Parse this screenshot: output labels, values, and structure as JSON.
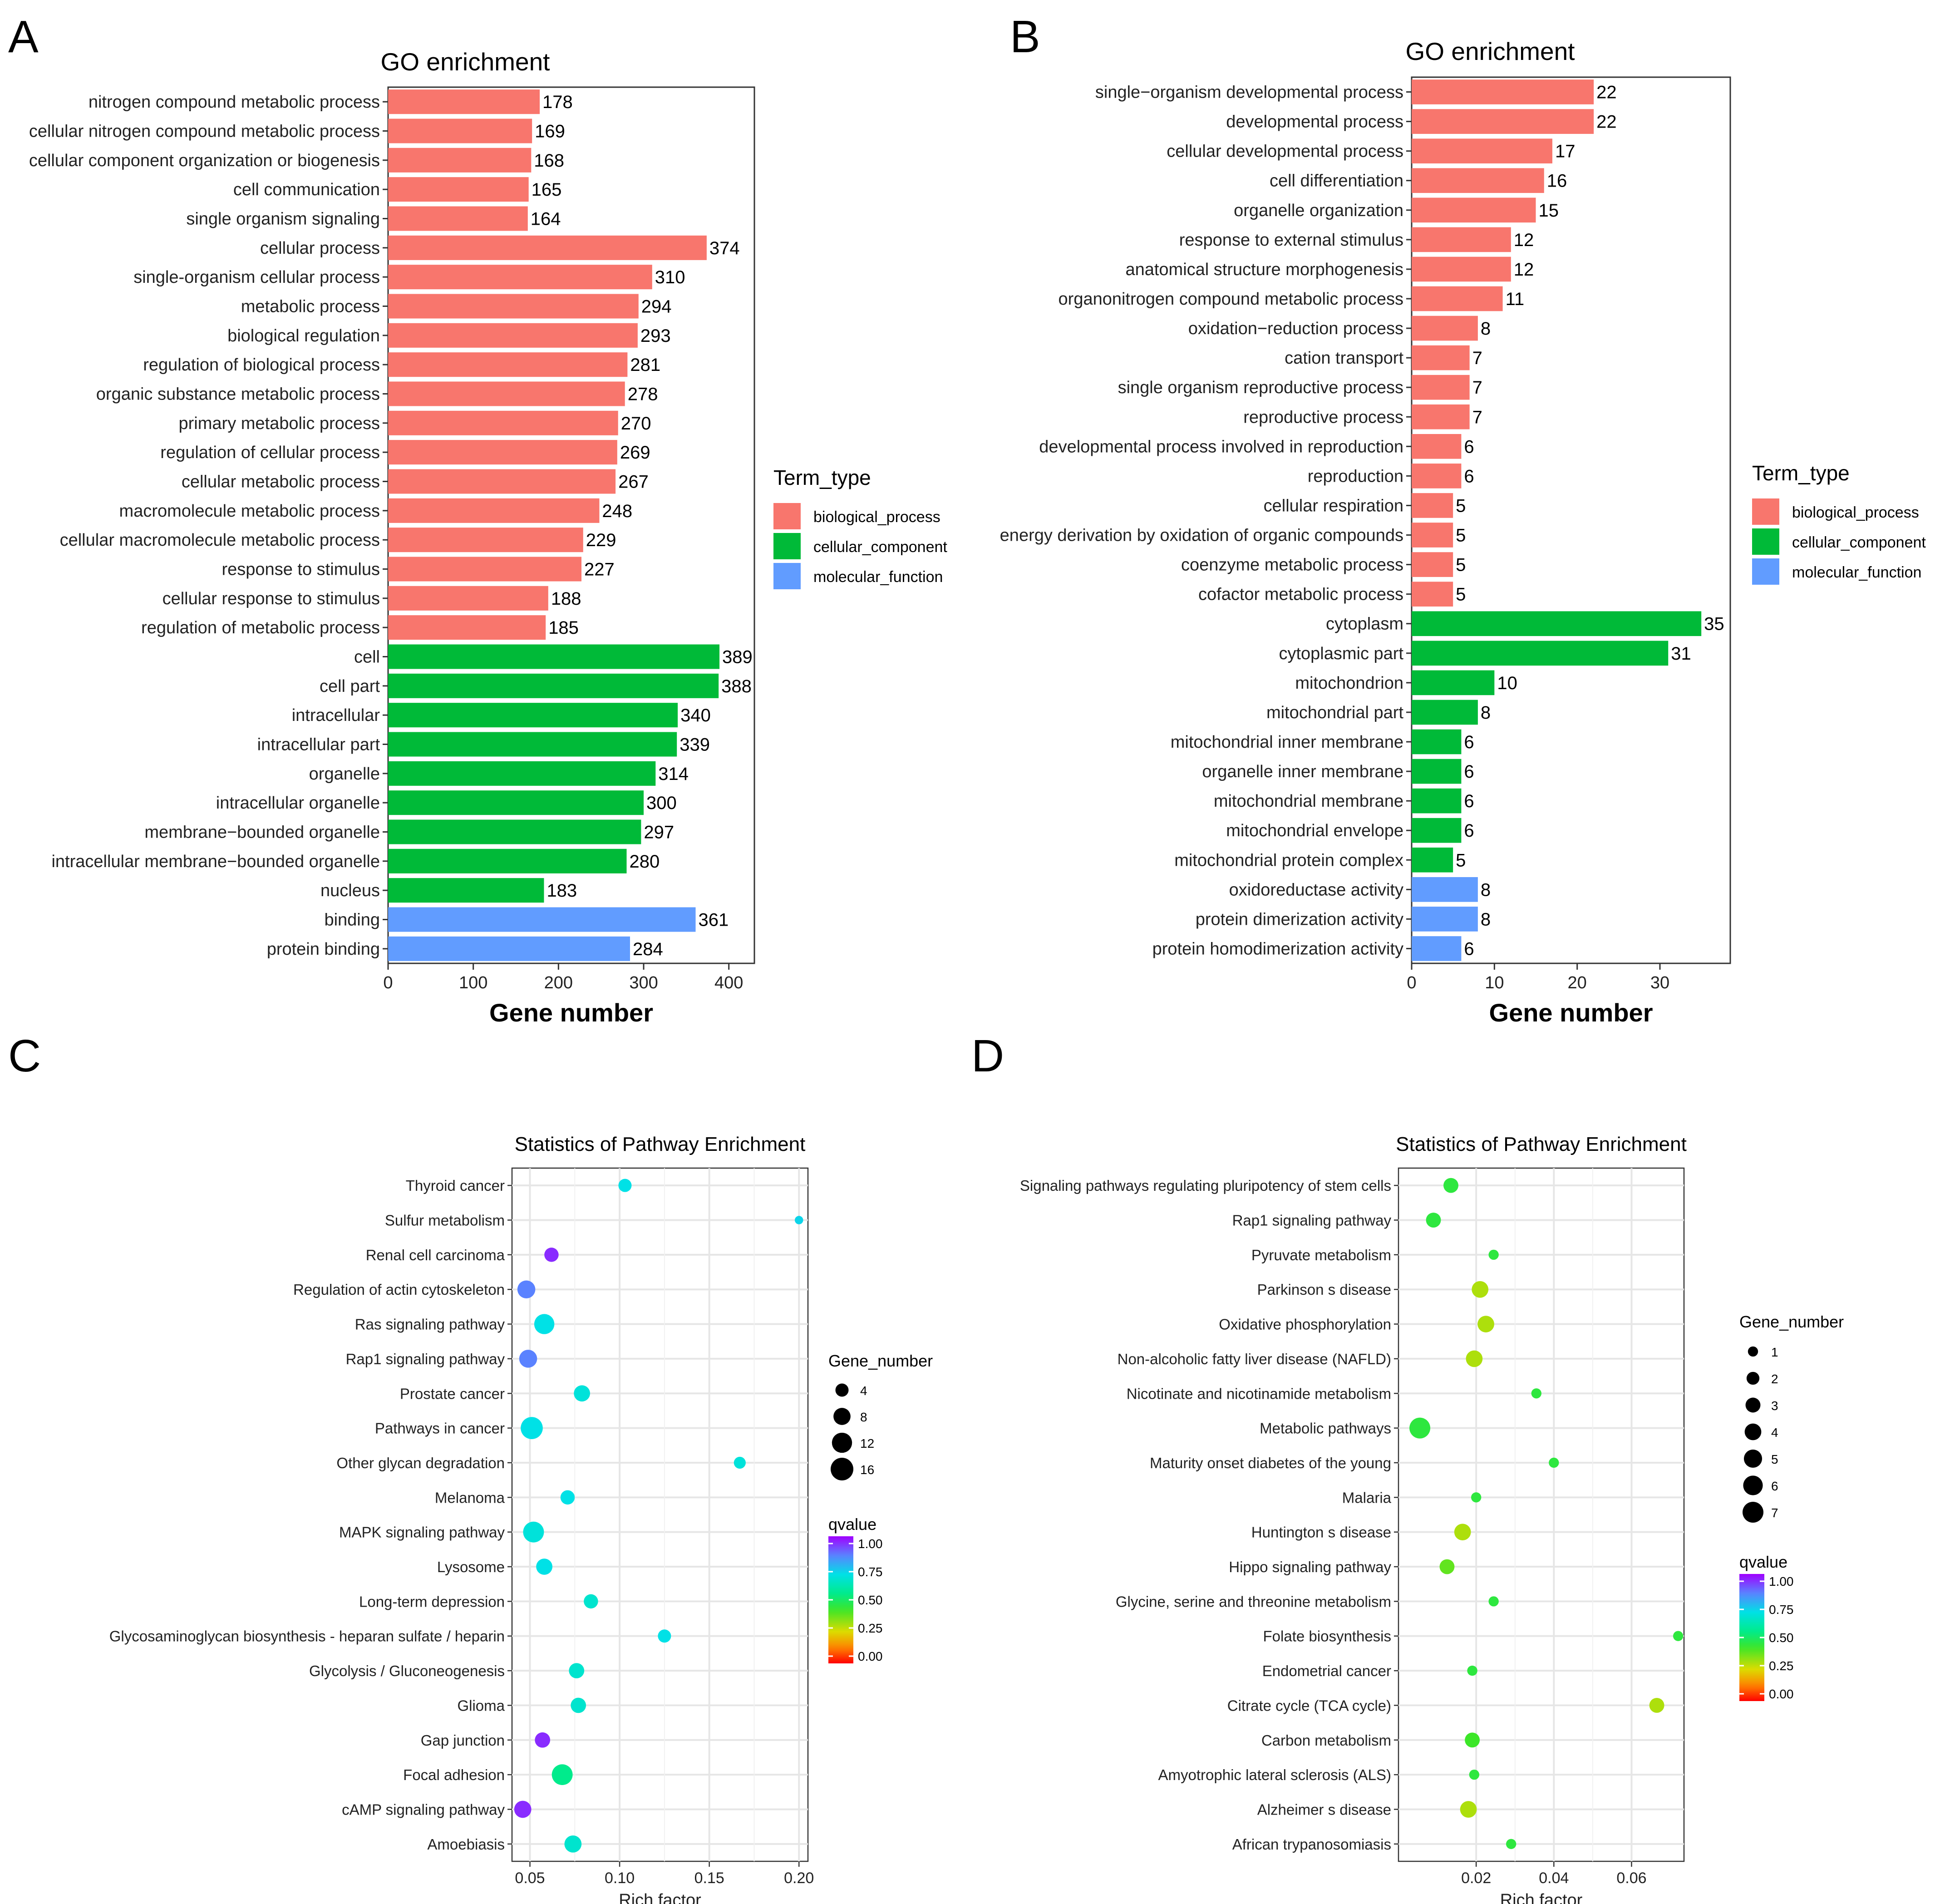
{
  "colors": {
    "biological_process": "#F8766D",
    "cellular_component": "#00BA38",
    "molecular_function": "#619CFF"
  },
  "panels": {
    "A": "A",
    "B": "B",
    "C": "C",
    "D": "D"
  },
  "chart_data": [
    {
      "panel": "A",
      "type": "bar",
      "orientation": "horizontal",
      "title": "GO enrichment",
      "xlabel": "Gene number",
      "xlim": [
        0,
        430
      ],
      "xticks": [
        0,
        100,
        200,
        300,
        400
      ],
      "legend": {
        "title": "Term_type",
        "items": [
          "biological_process",
          "cellular_component",
          "molecular_function"
        ]
      },
      "categories": [
        "nitrogen compound metabolic process",
        "cellular nitrogen compound metabolic process",
        "cellular component organization or biogenesis",
        "cell communication",
        "single organism signaling",
        "cellular process",
        "single-organism cellular process",
        "metabolic process",
        "biological regulation",
        "regulation of biological process",
        "organic substance metabolic process",
        "primary metabolic process",
        "regulation of cellular process",
        "cellular metabolic process",
        "macromolecule metabolic process",
        "cellular macromolecule metabolic process",
        "response to stimulus",
        "cellular response to stimulus",
        "regulation of metabolic process",
        "cell",
        "cell part",
        "intracellular",
        "intracellular part",
        "organelle",
        "intracellular organelle",
        "membrane−bounded organelle",
        "intracellular membrane−bounded organelle",
        "nucleus",
        "binding",
        "protein binding"
      ],
      "values": [
        178,
        169,
        168,
        165,
        164,
        374,
        310,
        294,
        293,
        281,
        278,
        270,
        269,
        267,
        248,
        229,
        227,
        188,
        185,
        389,
        388,
        340,
        339,
        314,
        300,
        297,
        280,
        183,
        361,
        284
      ],
      "types": [
        "biological_process",
        "biological_process",
        "biological_process",
        "biological_process",
        "biological_process",
        "biological_process",
        "biological_process",
        "biological_process",
        "biological_process",
        "biological_process",
        "biological_process",
        "biological_process",
        "biological_process",
        "biological_process",
        "biological_process",
        "biological_process",
        "biological_process",
        "biological_process",
        "biological_process",
        "cellular_component",
        "cellular_component",
        "cellular_component",
        "cellular_component",
        "cellular_component",
        "cellular_component",
        "cellular_component",
        "cellular_component",
        "cellular_component",
        "molecular_function",
        "molecular_function"
      ]
    },
    {
      "panel": "B",
      "type": "bar",
      "orientation": "horizontal",
      "title": "GO enrichment",
      "xlabel": "Gene number",
      "xlim": [
        0,
        38.5
      ],
      "xticks": [
        0,
        10,
        20,
        30
      ],
      "legend": {
        "title": "Term_type",
        "items": [
          "biological_process",
          "cellular_component",
          "molecular_function"
        ]
      },
      "categories": [
        "single−organism developmental process",
        "developmental process",
        "cellular developmental process",
        "cell differentiation",
        "organelle organization",
        "response to external stimulus",
        "anatomical structure morphogenesis",
        "organonitrogen compound metabolic process",
        "oxidation−reduction process",
        "cation transport",
        "single organism reproductive process",
        "reproductive process",
        "developmental process involved in reproduction",
        "reproduction",
        "cellular respiration",
        "energy derivation by oxidation of organic compounds",
        "coenzyme metabolic process",
        "cofactor metabolic process",
        "cytoplasm",
        "cytoplasmic part",
        "mitochondrion",
        "mitochondrial part",
        "mitochondrial inner membrane",
        "organelle inner membrane",
        "mitochondrial membrane",
        "mitochondrial envelope",
        "mitochondrial protein complex",
        "oxidoreductase activity",
        "protein dimerization activity",
        "protein homodimerization activity"
      ],
      "values": [
        22,
        22,
        17,
        16,
        15,
        12,
        12,
        11,
        8,
        7,
        7,
        7,
        6,
        6,
        5,
        5,
        5,
        5,
        35,
        31,
        10,
        8,
        6,
        6,
        6,
        6,
        5,
        8,
        8,
        6
      ],
      "types": [
        "biological_process",
        "biological_process",
        "biological_process",
        "biological_process",
        "biological_process",
        "biological_process",
        "biological_process",
        "biological_process",
        "biological_process",
        "biological_process",
        "biological_process",
        "biological_process",
        "biological_process",
        "biological_process",
        "biological_process",
        "biological_process",
        "biological_process",
        "biological_process",
        "cellular_component",
        "cellular_component",
        "cellular_component",
        "cellular_component",
        "cellular_component",
        "cellular_component",
        "cellular_component",
        "cellular_component",
        "cellular_component",
        "molecular_function",
        "molecular_function",
        "molecular_function"
      ]
    },
    {
      "panel": "C",
      "type": "scatter",
      "title": "Statistics of Pathway Enrichment",
      "xlabel": "Rich factor",
      "xlim": [
        0.04,
        0.205
      ],
      "xticks": [
        0.05,
        0.1,
        0.15,
        0.2
      ],
      "xtick_labels": [
        "0.05",
        "0.10",
        "0.15",
        "0.20"
      ],
      "size_legend": {
        "title": "Gene_number",
        "values": [
          4,
          8,
          12,
          16
        ]
      },
      "color_legend": {
        "title": "qvalue",
        "ticks": [
          "1.00",
          "0.75",
          "0.50",
          "0.25",
          "0.00"
        ]
      },
      "categories": [
        "Thyroid cancer",
        "Sulfur metabolism",
        "Renal cell carcinoma",
        "Regulation of actin cytoskeleton",
        "Ras signaling pathway",
        "Rap1 signaling pathway",
        "Prostate cancer",
        "Pathways in cancer",
        "Other glycan degradation",
        "Melanoma",
        "MAPK signaling pathway",
        "Lysosome",
        "Long-term depression",
        "Glycosaminoglycan biosynthesis - heparan sulfate / heparin",
        "Glycolysis / Gluconeogenesis",
        "Glioma",
        "Gap junction",
        "Focal adhesion",
        "cAMP signaling pathway",
        "Amoebiasis"
      ],
      "x": [
        0.103,
        0.2,
        0.062,
        0.048,
        0.058,
        0.049,
        0.079,
        0.051,
        0.167,
        0.071,
        0.052,
        0.058,
        0.084,
        0.125,
        0.076,
        0.077,
        0.057,
        0.068,
        0.046,
        0.074
      ],
      "gene_number": [
        4,
        1,
        5,
        9,
        12,
        9,
        7,
        15,
        3,
        5,
        13,
        7,
        5,
        4,
        6,
        6,
        6,
        13,
        8,
        8
      ],
      "qvalue": [
        0.7,
        0.72,
        0.95,
        0.85,
        0.7,
        0.85,
        0.68,
        0.7,
        0.68,
        0.7,
        0.68,
        0.7,
        0.66,
        0.7,
        0.66,
        0.66,
        0.95,
        0.55,
        0.95,
        0.66
      ]
    },
    {
      "panel": "D",
      "type": "scatter",
      "title": "Statistics of Pathway Enrichment",
      "xlabel": "Rich factor",
      "xlim": [
        0.0,
        0.0735
      ],
      "xticks": [
        0.02,
        0.04,
        0.06
      ],
      "xtick_labels": [
        "0.02",
        "0.04",
        "0.06"
      ],
      "size_legend": {
        "title": "Gene_number",
        "values": [
          1,
          2,
          3,
          4,
          5,
          6,
          7
        ]
      },
      "color_legend": {
        "title": "qvalue",
        "ticks": [
          "1.00",
          "0.75",
          "0.50",
          "0.25",
          "0.00"
        ]
      },
      "categories": [
        "Signaling pathways regulating pluripotency of stem cells",
        "Rap1 signaling pathway",
        "Pyruvate metabolism",
        "Parkinson s disease",
        "Oxidative phosphorylation",
        "Non-alcoholic fatty liver disease (NAFLD)",
        "Nicotinate and nicotinamide metabolism",
        "Metabolic pathways",
        "Maturity onset diabetes of the young",
        "Malaria",
        "Huntington s disease",
        "Hippo signaling pathway",
        "Glycine, serine and threonine metabolism",
        "Folate biosynthesis",
        "Endometrial cancer",
        "Citrate cycle (TCA cycle)",
        "Carbon metabolism",
        "Amyotrophic lateral sclerosis (ALS)",
        "Alzheimer s disease",
        "African trypanosomiasis"
      ],
      "x": [
        0.0135,
        0.009,
        0.0245,
        0.021,
        0.0225,
        0.0195,
        0.0355,
        0.0055,
        0.04,
        0.02,
        0.0165,
        0.0125,
        0.0245,
        0.072,
        0.019,
        0.0665,
        0.019,
        0.0195,
        0.018,
        0.029
      ],
      "gene_number": [
        3,
        3,
        1,
        4,
        4,
        4,
        1,
        7,
        1,
        1,
        4,
        3,
        1,
        1,
        1,
        3,
        3,
        1,
        4,
        1
      ],
      "qvalue": [
        0.45,
        0.45,
        0.45,
        0.3,
        0.3,
        0.3,
        0.45,
        0.45,
        0.45,
        0.45,
        0.3,
        0.38,
        0.45,
        0.45,
        0.45,
        0.3,
        0.42,
        0.45,
        0.3,
        0.45
      ]
    }
  ]
}
